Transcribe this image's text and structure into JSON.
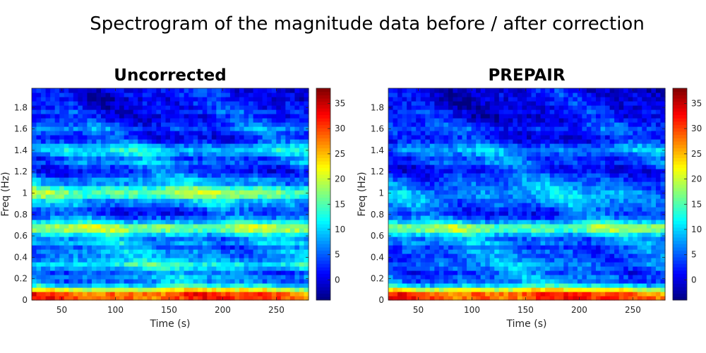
{
  "chart_data": {
    "title": "Spectrogram of the magnitude data before / after correction",
    "type": "heatmap",
    "colormap": "jet",
    "panels": [
      {
        "title": "Uncorrected",
        "xlabel": "Time (s)",
        "ylabel": "Freq (Hz)",
        "xlim": [
          22,
          280
        ],
        "ylim": [
          0,
          1.98
        ],
        "xticks": [
          50,
          100,
          150,
          200,
          250
        ],
        "yticks": [
          0,
          0.2,
          0.4,
          0.6,
          0.8,
          1,
          1.2,
          1.4,
          1.6,
          1.8
        ],
        "ytick_labels": [
          "0",
          "0.2",
          "0.4",
          "0.6",
          "0.8",
          "1",
          "1.2",
          "1.4",
          "1.6",
          "1.8"
        ],
        "clim": [
          -4,
          38
        ],
        "colorbar_ticks": [
          0,
          5,
          10,
          15,
          20,
          25,
          30,
          35
        ],
        "n_time_bins": 60,
        "freq_profile": [
          [
            0.0,
            28
          ],
          [
            0.04,
            32
          ],
          [
            0.07,
            28
          ],
          [
            0.1,
            21
          ],
          [
            0.13,
            13
          ],
          [
            0.17,
            6
          ],
          [
            0.21,
            9
          ],
          [
            0.25,
            5
          ],
          [
            0.29,
            9
          ],
          [
            0.33,
            13
          ],
          [
            0.37,
            9
          ],
          [
            0.41,
            7
          ],
          [
            0.45,
            8
          ],
          [
            0.49,
            5
          ],
          [
            0.53,
            9
          ],
          [
            0.57,
            7
          ],
          [
            0.61,
            10
          ],
          [
            0.65,
            17
          ],
          [
            0.69,
            18
          ],
          [
            0.73,
            11
          ],
          [
            0.77,
            6
          ],
          [
            0.81,
            3
          ],
          [
            0.85,
            4
          ],
          [
            0.89,
            7
          ],
          [
            0.93,
            9
          ],
          [
            0.97,
            15
          ],
          [
            1.01,
            17
          ],
          [
            1.05,
            14
          ],
          [
            1.09,
            8
          ],
          [
            1.13,
            8
          ],
          [
            1.17,
            5
          ],
          [
            1.21,
            3
          ],
          [
            1.25,
            4
          ],
          [
            1.29,
            7
          ],
          [
            1.33,
            5
          ],
          [
            1.37,
            9
          ],
          [
            1.41,
            11
          ],
          [
            1.45,
            7
          ],
          [
            1.49,
            3
          ],
          [
            1.53,
            2
          ],
          [
            1.57,
            3
          ],
          [
            1.61,
            6
          ],
          [
            1.65,
            3
          ],
          [
            1.69,
            2
          ],
          [
            1.73,
            1
          ],
          [
            1.77,
            3
          ],
          [
            1.81,
            1
          ],
          [
            1.85,
            2
          ],
          [
            1.89,
            0
          ],
          [
            1.93,
            2
          ],
          [
            1.97,
            1
          ]
        ],
        "seed": 11
      },
      {
        "title": "PREPAIR",
        "xlabel": "Time (s)",
        "ylabel": "Freq (Hz)",
        "xlim": [
          22,
          280
        ],
        "ylim": [
          0,
          1.98
        ],
        "xticks": [
          50,
          100,
          150,
          200,
          250
        ],
        "yticks": [
          0,
          0.2,
          0.4,
          0.6,
          0.8,
          1,
          1.2,
          1.4,
          1.6,
          1.8
        ],
        "ytick_labels": [
          "0",
          "0.2",
          "0.4",
          "0.6",
          "0.8",
          "1",
          "1.2",
          "1.4",
          "1.6",
          "1.8"
        ],
        "clim": [
          -4,
          38
        ],
        "colorbar_ticks": [
          0,
          5,
          10,
          15,
          20,
          25,
          30,
          35
        ],
        "n_time_bins": 60,
        "freq_profile": [
          [
            0.0,
            28
          ],
          [
            0.04,
            32
          ],
          [
            0.07,
            28
          ],
          [
            0.1,
            21
          ],
          [
            0.13,
            13
          ],
          [
            0.17,
            6
          ],
          [
            0.21,
            7
          ],
          [
            0.25,
            4
          ],
          [
            0.29,
            6
          ],
          [
            0.33,
            7
          ],
          [
            0.37,
            6
          ],
          [
            0.41,
            5
          ],
          [
            0.45,
            6
          ],
          [
            0.49,
            4
          ],
          [
            0.53,
            7
          ],
          [
            0.57,
            6
          ],
          [
            0.61,
            9
          ],
          [
            0.65,
            16
          ],
          [
            0.69,
            17
          ],
          [
            0.73,
            10
          ],
          [
            0.77,
            5
          ],
          [
            0.81,
            3
          ],
          [
            0.85,
            4
          ],
          [
            0.89,
            6
          ],
          [
            0.93,
            7
          ],
          [
            0.97,
            8
          ],
          [
            1.01,
            8
          ],
          [
            1.05,
            7
          ],
          [
            1.09,
            6
          ],
          [
            1.13,
            5
          ],
          [
            1.17,
            4
          ],
          [
            1.21,
            2
          ],
          [
            1.25,
            3
          ],
          [
            1.29,
            5
          ],
          [
            1.33,
            4
          ],
          [
            1.37,
            6
          ],
          [
            1.41,
            8
          ],
          [
            1.45,
            5
          ],
          [
            1.49,
            2
          ],
          [
            1.53,
            1
          ],
          [
            1.57,
            2
          ],
          [
            1.61,
            4
          ],
          [
            1.65,
            2
          ],
          [
            1.69,
            1
          ],
          [
            1.73,
            0
          ],
          [
            1.77,
            2
          ],
          [
            1.81,
            0
          ],
          [
            1.85,
            1
          ],
          [
            1.89,
            0
          ],
          [
            1.93,
            1
          ],
          [
            1.97,
            0
          ]
        ],
        "seed": 29
      }
    ]
  }
}
